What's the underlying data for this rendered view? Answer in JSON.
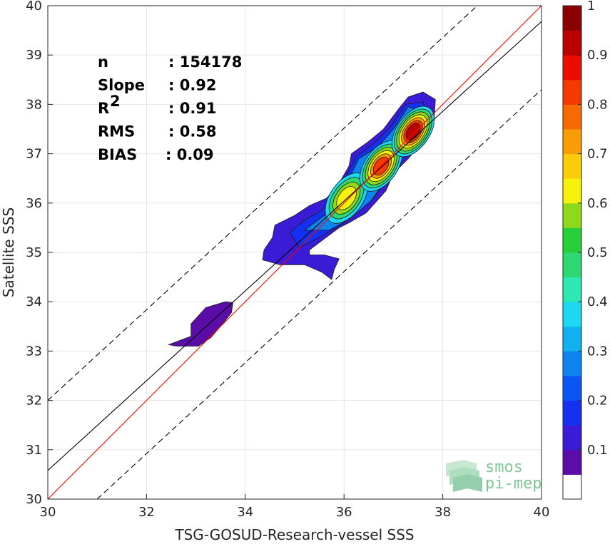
{
  "chart_data": {
    "type": "heatmap",
    "subtype": "2d-density-contour-scatter",
    "xlabel": "TSG-GOSUD-Research-vessel SSS",
    "ylabel": "Satellite SSS",
    "xlim": [
      30,
      40
    ],
    "ylim": [
      30,
      40
    ],
    "x_ticks": [
      "30",
      "32",
      "34",
      "36",
      "38",
      "40"
    ],
    "y_ticks": [
      "30",
      "31",
      "32",
      "33",
      "34",
      "35",
      "36",
      "37",
      "38",
      "39",
      "40"
    ],
    "grid": true,
    "stats": [
      {
        "label": "n",
        "value": ": 154178"
      },
      {
        "label": "Slope",
        "value": ": 0.92"
      },
      {
        "label": "R",
        "sup": "2",
        "value": ": 0.91"
      },
      {
        "label": "RMS",
        "value": ": 0.58"
      },
      {
        "label": "BIAS",
        "value": ": 0.09"
      }
    ],
    "lines": {
      "identity": {
        "x": [
          30,
          40
        ],
        "y": [
          30,
          40
        ],
        "color": "#ff0000"
      },
      "regression": {
        "x": [
          30,
          40
        ],
        "y": [
          30.58,
          39.68
        ],
        "color": "#000000"
      },
      "upper_bound": {
        "x": [
          30,
          38.7
        ],
        "y": [
          32,
          40
        ],
        "color": "#000000",
        "style": "dashed"
      },
      "lower_bound": {
        "x": [
          31,
          40
        ],
        "y": [
          30,
          38.3
        ],
        "color": "#000000",
        "style": "dashed"
      }
    },
    "density_peaks": [
      {
        "x": 36.05,
        "y": 36.1,
        "level": 0.6
      },
      {
        "x": 36.75,
        "y": 36.75,
        "level": 0.85
      },
      {
        "x": 37.4,
        "y": 37.45,
        "level": 0.95
      }
    ],
    "colorbar": {
      "ticks": [
        "0.1",
        "0.2",
        "0.3",
        "0.4",
        "0.5",
        "0.6",
        "0.7",
        "0.8",
        "0.9",
        "1"
      ],
      "range": [
        0,
        1
      ],
      "levels": [
        "#ffffff",
        "#5b0da8",
        "#3a1cd6",
        "#1530f0",
        "#0a56f5",
        "#0d84f0",
        "#12b0ef",
        "#1cd8f0",
        "#2be8b4",
        "#2ed873",
        "#27cf3a",
        "#8ed919",
        "#f6f20c",
        "#fbcc0a",
        "#f99c06",
        "#f76a03",
        "#f53a01",
        "#ec0d00",
        "#bb0200",
        "#8a0000"
      ]
    },
    "colors": {
      "identity": "#ff0000",
      "regression": "#000000",
      "grid": "#e6e6e6"
    }
  },
  "logo": {
    "line1": "smos",
    "line2": "pi-mep",
    "icon": "stacked-waves-icon",
    "color": "#7fc79a"
  }
}
